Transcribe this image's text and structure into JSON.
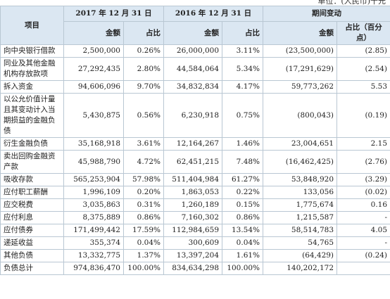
{
  "unit": "单位：(人民币)千元",
  "table": {
    "header_top": [
      "项目",
      "2017 年 12 月 31 日",
      "2016 年 12 月 31 日",
      "期间变动"
    ],
    "header_sub": [
      "金额",
      "占比",
      "金额",
      "占比",
      "金额",
      "占比（百分点）"
    ],
    "rows": [
      [
        "向中央银行借款",
        "2,500,000",
        "0.26%",
        "26,000,000",
        "3.11%",
        "(23,500,000)",
        "(2.85)"
      ],
      [
        "同业及其他金融机构存放款项",
        "27,292,435",
        "2.80%",
        "44,584,064",
        "5.34%",
        "(17,291,629)",
        "(2.54)"
      ],
      [
        "拆入资金",
        "94,606,096",
        "9.70%",
        "34,832,834",
        "4.17%",
        "59,773,262",
        "5.53"
      ],
      [
        "以公允价值计量且其变动计入当期损益的金融负债",
        "5,430,875",
        "0.56%",
        "6,230,918",
        "0.75%",
        "(800,043)",
        "(0.19)"
      ],
      [
        "衍生金融负债",
        "35,168,918",
        "3.61%",
        "12,164,267",
        "1.46%",
        "23,004,651",
        "2.15"
      ],
      [
        "卖出回购金融资产款",
        "45,988,790",
        "4.72%",
        "62,451,215",
        "7.48%",
        "(16,462,425)",
        "(2.76)"
      ],
      [
        "吸收存款",
        "565,253,904",
        "57.98%",
        "511,404,984",
        "61.27%",
        "53,848,920",
        "(3.29)"
      ],
      [
        "应付职工薪酬",
        "1,996,109",
        "0.20%",
        "1,863,053",
        "0.22%",
        "133,056",
        "(0.02)"
      ],
      [
        "应交税费",
        "3,035,863",
        "0.31%",
        "1,260,189",
        "0.15%",
        "1,775,674",
        "0.16"
      ],
      [
        "应付利息",
        "8,375,889",
        "0.86%",
        "7,160,302",
        "0.86%",
        "1,215,587",
        "-"
      ],
      [
        "应付债券",
        "171,499,442",
        "17.59%",
        "112,984,659",
        "13.54%",
        "58,514,783",
        "4.05"
      ],
      [
        "递延收益",
        "355,374",
        "0.04%",
        "300,609",
        "0.04%",
        "54,765",
        "-"
      ],
      [
        "其他负债",
        "13,332,775",
        "1.37%",
        "13,397,204",
        "1.61%",
        "(64,429)",
        "(0.24)"
      ],
      [
        "负债总计",
        "974,836,470",
        "100.00%",
        "834,634,298",
        "100.00%",
        "140,202,172"
      ]
    ]
  }
}
